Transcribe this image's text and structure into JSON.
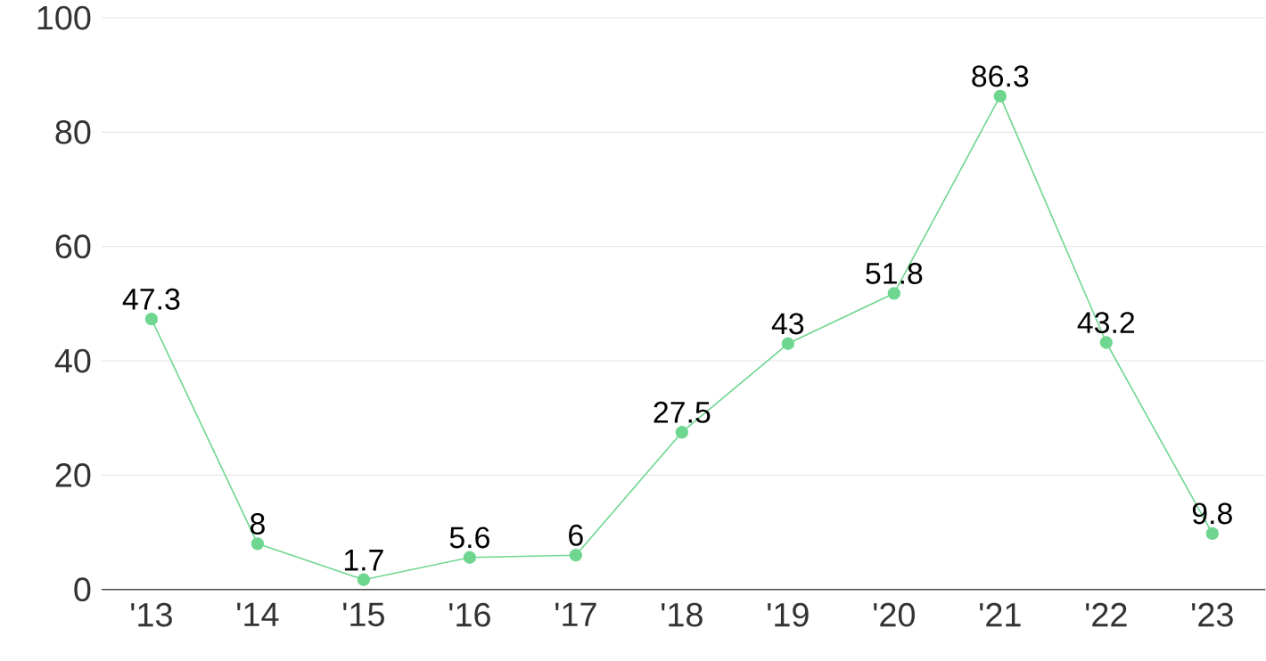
{
  "chart_data": {
    "type": "line",
    "categories": [
      "'13",
      "'14",
      "'15",
      "'16",
      "'17",
      "'18",
      "'19",
      "'20",
      "'21",
      "'22",
      "'23"
    ],
    "series": [
      {
        "color": "#6fd690",
        "values": [
          47.3,
          8,
          1.7,
          5.6,
          6,
          27.5,
          43,
          51.8,
          86.3,
          43.2,
          9.8
        ]
      }
    ],
    "ylim": [
      0,
      100
    ],
    "yticks": [
      0,
      20,
      40,
      60,
      80,
      100
    ],
    "grid": "y",
    "marker": "circle",
    "line_style": "solid",
    "data_labels": true
  }
}
